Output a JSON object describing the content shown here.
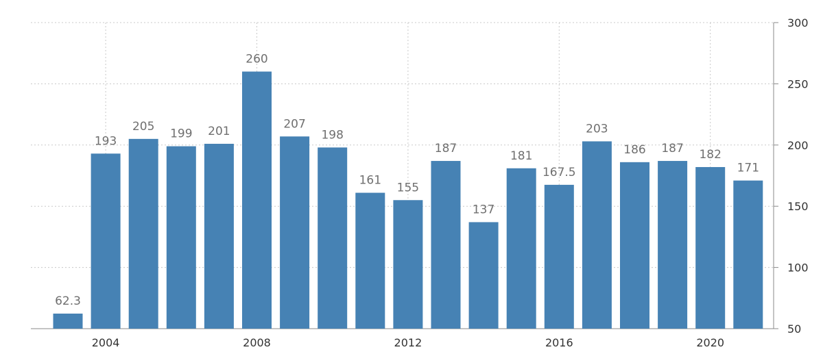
{
  "chart_data": {
    "type": "bar",
    "categories": [
      "2003",
      "2004",
      "2005",
      "2006",
      "2007",
      "2008",
      "2009",
      "2010",
      "2011",
      "2012",
      "2013",
      "2014",
      "2015",
      "2016",
      "2017",
      "2018",
      "2019",
      "2020",
      "2021"
    ],
    "values": [
      62.3,
      193,
      205,
      199,
      201,
      260,
      207,
      198,
      161,
      155,
      187,
      137,
      181,
      167.5,
      203,
      186,
      187,
      182,
      171
    ],
    "value_labels": [
      "62.3",
      "193",
      "205",
      "199",
      "201",
      "260",
      "207",
      "198",
      "161",
      "155",
      "187",
      "137",
      "181",
      "167.5",
      "203",
      "186",
      "187",
      "182",
      "171"
    ],
    "x_ticks": [
      "2004",
      "2008",
      "2012",
      "2016",
      "2020"
    ],
    "y_ticks": [
      "50",
      "100",
      "150",
      "200",
      "250",
      "300"
    ],
    "ylim": [
      50,
      300
    ],
    "bar_color": "#4682b4",
    "grid": true,
    "y_axis_side": "right",
    "title": "",
    "xlabel": "",
    "ylabel": ""
  }
}
